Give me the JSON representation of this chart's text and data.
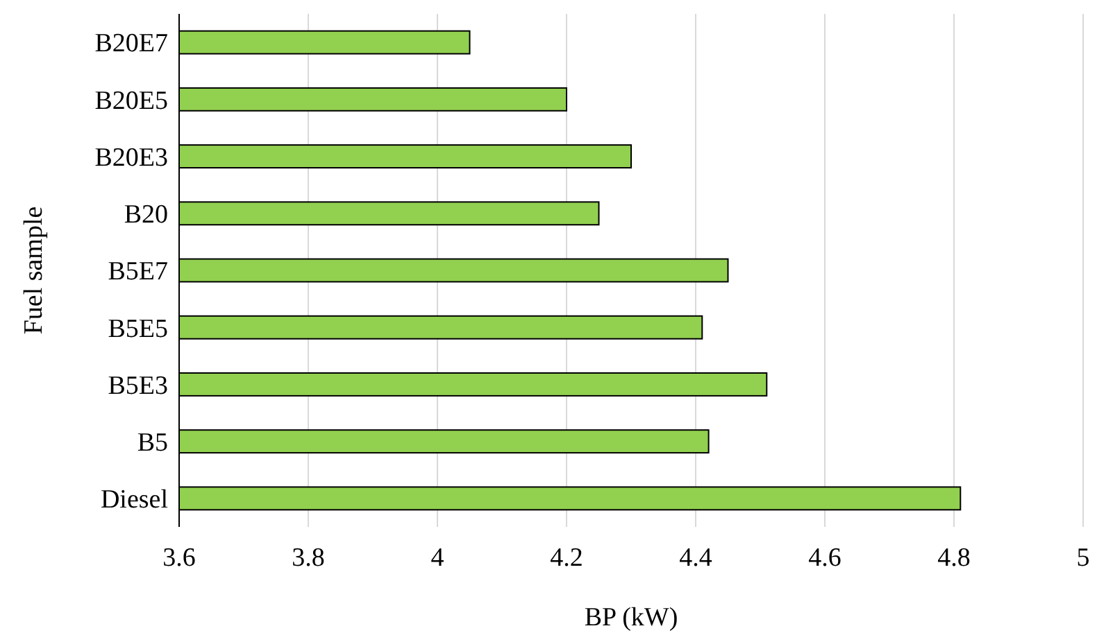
{
  "chart_data": {
    "type": "bar",
    "orientation": "horizontal",
    "xlabel": "BP (kW)",
    "ylabel": "Fuel sample",
    "categories": [
      "B20E7",
      "B20E5",
      "B20E3",
      "B20",
      "B5E7",
      "B5E5",
      "B5E3",
      "B5",
      "Diesel"
    ],
    "values": [
      4.05,
      4.2,
      4.3,
      4.25,
      4.45,
      4.41,
      4.51,
      4.42,
      4.81
    ],
    "color": "#92d050",
    "xlim": [
      3.6,
      5
    ],
    "xticks": [
      3.6,
      3.8,
      4,
      4.2,
      4.4,
      4.6,
      4.8,
      5
    ],
    "grid": "x"
  }
}
